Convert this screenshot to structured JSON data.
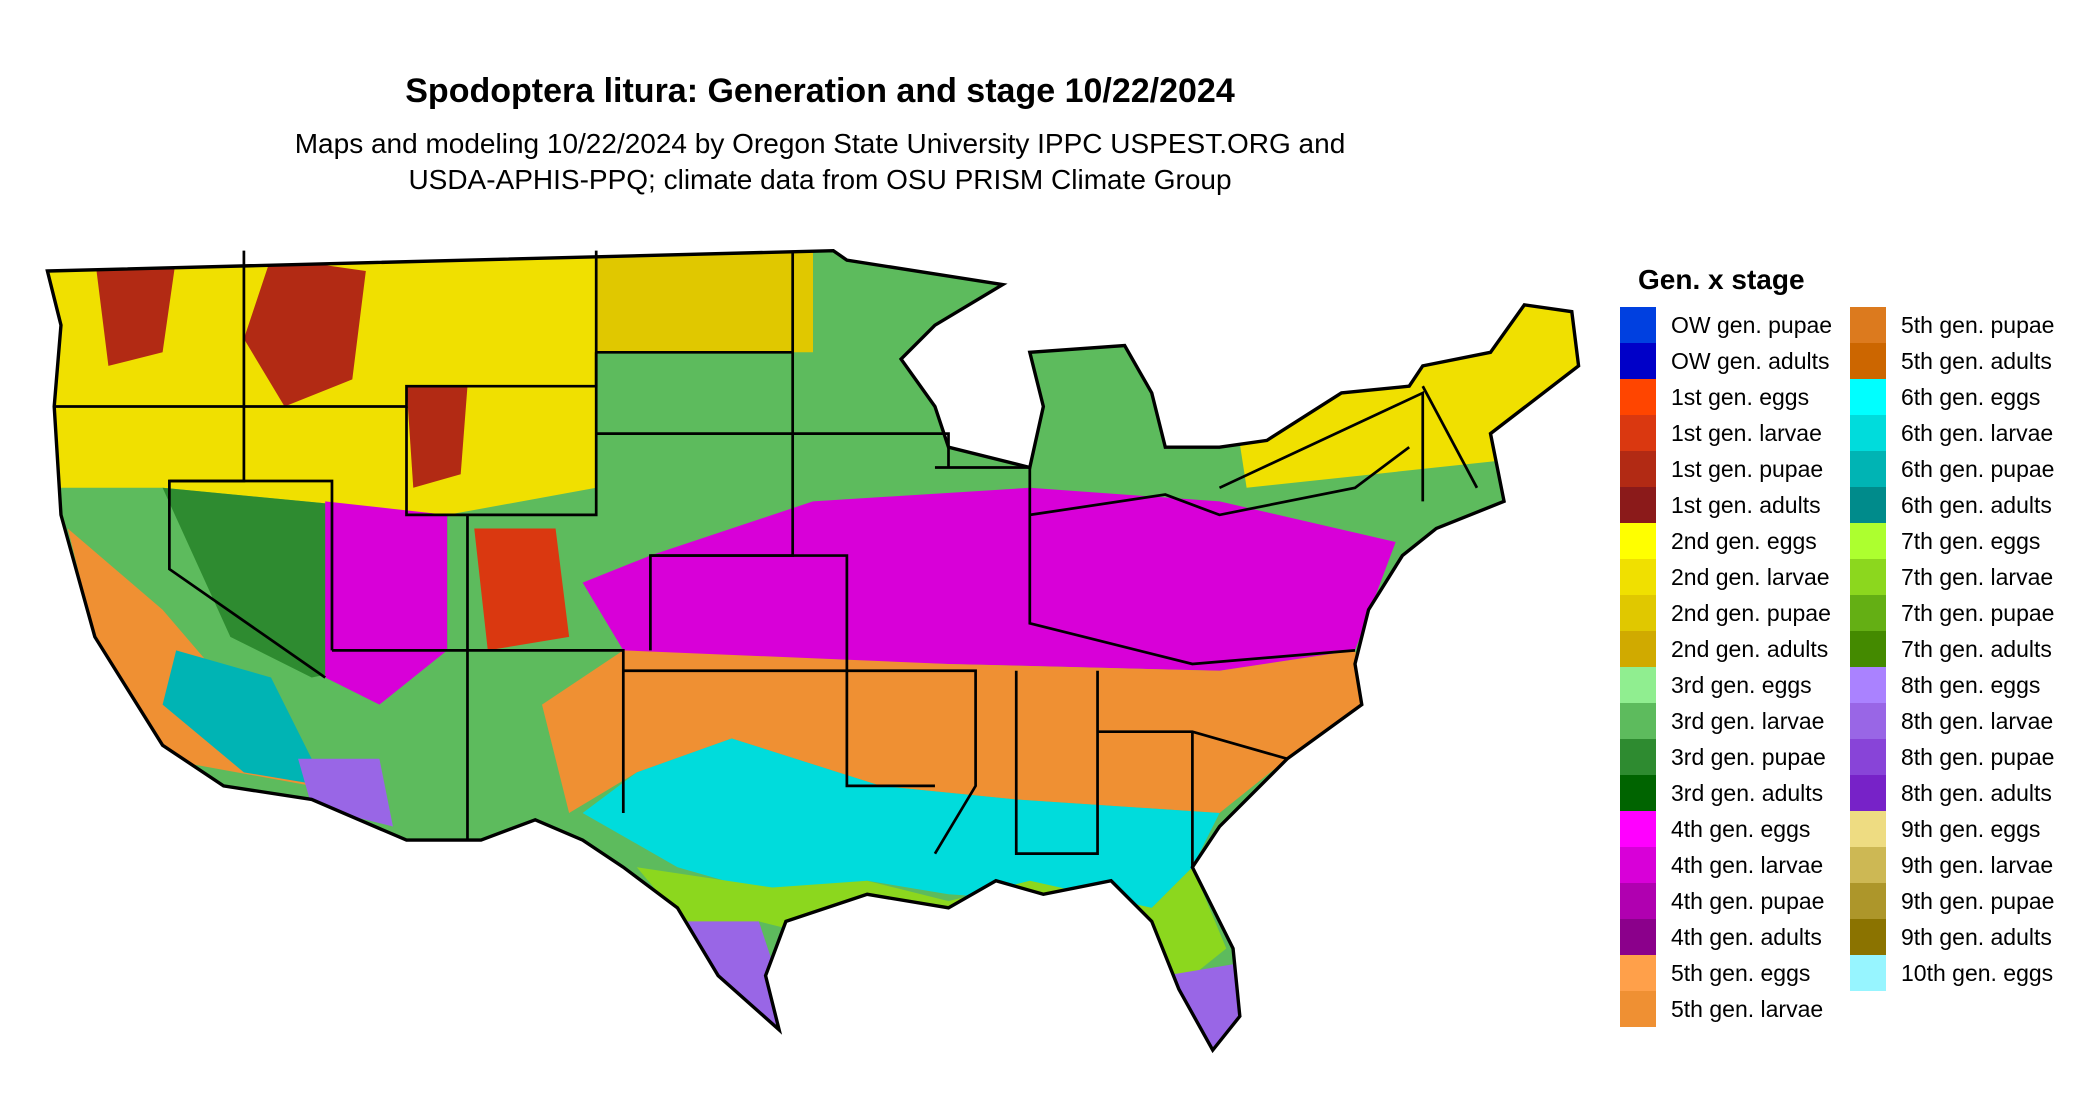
{
  "title": "Spodoptera litura: Generation and stage 10/22/2024",
  "subtitle_lines": [
    "Maps and modeling 10/22/2024 by Oregon State University IPPC USPEST.ORG and",
    "USDA-APHIS-PPQ; climate data from OSU PRISM Climate Group"
  ],
  "legend": {
    "title": "Gen. x stage",
    "items": [
      {
        "label": "OW gen. pupae",
        "color": "#0040e0"
      },
      {
        "label": "OW gen. adults",
        "color": "#0000c8"
      },
      {
        "label": "1st gen. eggs",
        "color": "#ff4500"
      },
      {
        "label": "1st gen. larvae",
        "color": "#da3810"
      },
      {
        "label": "1st gen. pupae",
        "color": "#b22a14"
      },
      {
        "label": "1st gen. adults",
        "color": "#8b1a1a"
      },
      {
        "label": "2nd gen. eggs",
        "color": "#ffff00"
      },
      {
        "label": "2nd gen. larvae",
        "color": "#f0e000"
      },
      {
        "label": "2nd gen. pupae",
        "color": "#e0c800"
      },
      {
        "label": "2nd gen. adults",
        "color": "#d0aa00"
      },
      {
        "label": "3rd gen. eggs",
        "color": "#90ee90"
      },
      {
        "label": "3rd gen. larvae",
        "color": "#5dbb5d"
      },
      {
        "label": "3rd gen. pupae",
        "color": "#2e8b30"
      },
      {
        "label": "3rd gen. adults",
        "color": "#006400"
      },
      {
        "label": "4th gen. eggs",
        "color": "#ff00ff"
      },
      {
        "label": "4th gen. larvae",
        "color": "#d800d8"
      },
      {
        "label": "4th gen. pupae",
        "color": "#b000b0"
      },
      {
        "label": "4th gen. adults",
        "color": "#8b008b"
      },
      {
        "label": "5th gen. eggs",
        "color": "#ffa04a"
      },
      {
        "label": "5th gen. larvae",
        "color": "#ef9033"
      },
      {
        "label": "5th gen. pupae",
        "color": "#dc7a1e"
      },
      {
        "label": "5th gen. adults",
        "color": "#cc6600"
      },
      {
        "label": "6th gen. eggs",
        "color": "#00ffff"
      },
      {
        "label": "6th gen. larvae",
        "color": "#00dcdc"
      },
      {
        "label": "6th gen. pupae",
        "color": "#00b4b4"
      },
      {
        "label": "6th gen. adults",
        "color": "#008b8b"
      },
      {
        "label": "7th gen. eggs",
        "color": "#adff2f"
      },
      {
        "label": "7th gen. larvae",
        "color": "#8cd71e"
      },
      {
        "label": "7th gen. pupae",
        "color": "#64af14"
      },
      {
        "label": "7th gen. adults",
        "color": "#448a00"
      },
      {
        "label": "8th gen. eggs",
        "color": "#aa82ff"
      },
      {
        "label": "8th gen. larvae",
        "color": "#9966e6"
      },
      {
        "label": "8th gen. pupae",
        "color": "#8844d8"
      },
      {
        "label": "8th gen. adults",
        "color": "#7722c8"
      },
      {
        "label": "9th gen. eggs",
        "color": "#eedc82"
      },
      {
        "label": "9th gen. larvae",
        "color": "#cdb854"
      },
      {
        "label": "9th gen. pupae",
        "color": "#ad962a"
      },
      {
        "label": "9th gen. adults",
        "color": "#8b7300"
      },
      {
        "label": "10th gen. eggs",
        "color": "#97f5ff"
      }
    ]
  }
}
